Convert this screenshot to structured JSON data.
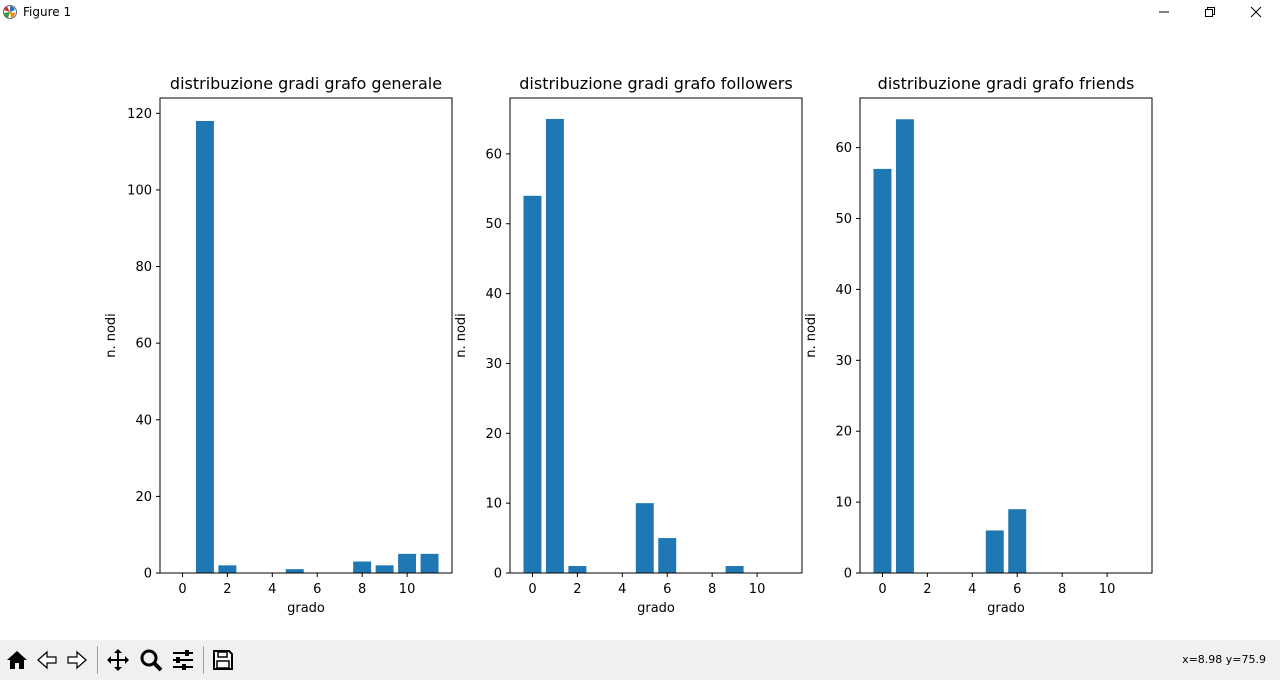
{
  "window": {
    "title": "Figure 1",
    "icon": "matplotlib-icon",
    "controls": [
      "minimize-icon",
      "maximize-icon",
      "close-icon"
    ]
  },
  "colors": {
    "bar": "#1f77b4",
    "toolbar_bg": "#f0f0f0"
  },
  "chart_data": [
    {
      "type": "bar",
      "title": "distribuzione gradi grafo generale",
      "xlabel": "grado",
      "ylabel": "n. nodi",
      "x": [
        1,
        2,
        5,
        8,
        9,
        10,
        11
      ],
      "values": [
        118,
        2,
        1,
        3,
        2,
        5,
        5
      ],
      "xlim": [
        -1,
        12
      ],
      "ylim": [
        0,
        124
      ],
      "xticks": [
        0,
        2,
        4,
        6,
        8,
        10
      ],
      "yticks": [
        0,
        20,
        40,
        60,
        80,
        100,
        120
      ],
      "grid": false
    },
    {
      "type": "bar",
      "title": "distribuzione gradi grafo followers",
      "xlabel": "grado",
      "ylabel": "n. nodi",
      "x": [
        0,
        1,
        2,
        5,
        6,
        9
      ],
      "values": [
        54,
        65,
        1,
        10,
        5,
        1
      ],
      "xlim": [
        -1,
        12
      ],
      "ylim": [
        0,
        68
      ],
      "xticks": [
        0,
        2,
        4,
        6,
        8,
        10
      ],
      "yticks": [
        0,
        10,
        20,
        30,
        40,
        50,
        60
      ],
      "grid": false
    },
    {
      "type": "bar",
      "title": "distribuzione gradi grafo friends",
      "xlabel": "grado",
      "ylabel": "n. nodi",
      "x": [
        0,
        1,
        5,
        6
      ],
      "values": [
        57,
        64,
        6,
        9
      ],
      "xlim": [
        -1,
        12
      ],
      "ylim": [
        0,
        67
      ],
      "xticks": [
        0,
        2,
        4,
        6,
        8,
        10
      ],
      "yticks": [
        0,
        10,
        20,
        30,
        40,
        50,
        60
      ],
      "grid": false
    }
  ],
  "toolbar": {
    "buttons": [
      "home-icon",
      "back-icon",
      "forward-icon",
      "pan-icon",
      "zoom-icon",
      "configure-subplots-icon",
      "save-icon"
    ],
    "coords": "x=8.98 y=75.9"
  }
}
